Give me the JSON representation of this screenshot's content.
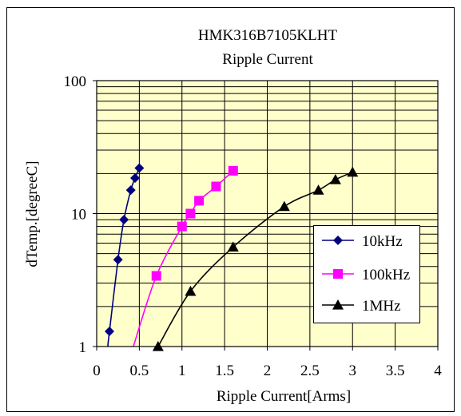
{
  "chart_data": {
    "type": "line",
    "title": "HMK316B7105KLHT",
    "subtitle": "Ripple Current",
    "xlabel": "Ripple Current[Arms]",
    "ylabel": "dTemp.[degreeC]",
    "xlim": [
      0,
      4
    ],
    "ylim": [
      1,
      100
    ],
    "yscale": "log",
    "x_ticks": [
      0,
      0.5,
      1,
      1.5,
      2,
      2.5,
      3,
      3.5,
      4
    ],
    "x_tick_labels": [
      "0",
      "0.5",
      "1",
      "1.5",
      "2",
      "2.5",
      "3",
      "3.5",
      "4"
    ],
    "y_tick_values": [
      1,
      10,
      100
    ],
    "y_tick_labels": [
      "1",
      "10",
      "100"
    ],
    "grid": true,
    "legend_position": "right",
    "plot_background": "#ffffcc",
    "series": [
      {
        "name": "10kHz",
        "color": "#000080",
        "marker": "diamond",
        "x": [
          0.15,
          0.25,
          0.32,
          0.4,
          0.45,
          0.5
        ],
        "y": [
          1.3,
          4.5,
          9,
          15,
          18.5,
          22
        ]
      },
      {
        "name": "100kHz",
        "color": "#ff00ff",
        "marker": "square",
        "x": [
          0.7,
          1.0,
          1.1,
          1.2,
          1.4,
          1.6
        ],
        "y": [
          3.4,
          8,
          10,
          12.5,
          16,
          21
        ]
      },
      {
        "name": "1MHz",
        "color": "#000000",
        "marker": "triangle",
        "x": [
          0.72,
          1.1,
          1.6,
          2.2,
          2.6,
          2.8,
          3.0
        ],
        "y": [
          1,
          2.6,
          5.6,
          11.3,
          15,
          18,
          20.5
        ]
      }
    ],
    "curve_extensions": {
      "10kHz": {
        "x": 0.13,
        "y": 1
      },
      "100kHz": {
        "x": 0.43,
        "y": 1
      }
    }
  }
}
